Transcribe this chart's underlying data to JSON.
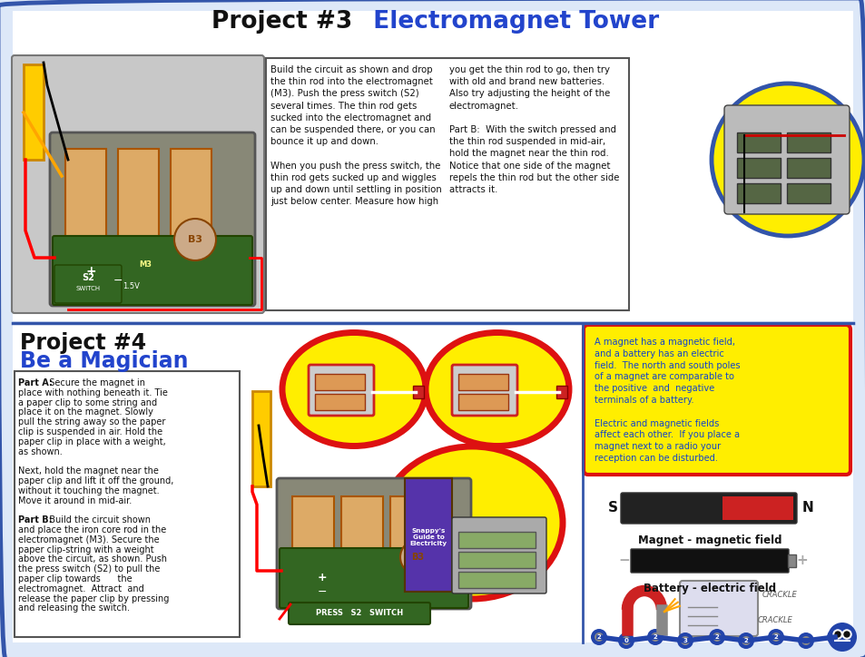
{
  "bg_color": "#ffffff",
  "outer_border_color": "#3355aa",
  "title_project3_black": "Project #3",
  "title_project3_blue": "  Electromagnet Tower",
  "title_project4_black": "Project #4",
  "title_project4_blue": "Be a Magician",
  "text_magnet_label": "Magnet - magnetic field",
  "text_battery_label": "Battery - electric field",
  "yellow_bg": "#ffee00",
  "red_border": "#dd1111",
  "blue_border": "#3355aa",
  "lines_left": [
    "Build the circuit as shown and drop",
    "the thin rod into the electromagnet",
    "(M3). Push the press switch (S2)",
    "several times. The thin rod gets",
    "sucked into the electromagnet and",
    "can be suspended there, or you can",
    "bounce it up and down.",
    "",
    "When you push the press switch, the",
    "thin rod gets sucked up and wiggles",
    "up and down until settling in position",
    "just below center. Measure how high"
  ],
  "lines_right": [
    "you get the thin rod to go, then try",
    "with old and brand new batteries.",
    "Also try adjusting the height of the",
    "electromagnet.",
    "",
    "Part B:  With the switch pressed and",
    "the thin rod suspended in mid-air,",
    "hold the magnet near the thin rod.",
    "Notice that one side of the magnet",
    "repels the thin rod but the other side",
    "attracts it."
  ],
  "lines_partAB": [
    [
      "Part A:  Secure the magnet in",
      true
    ],
    [
      "place with nothing beneath it. Tie",
      false
    ],
    [
      "a paper clip to some string and",
      false
    ],
    [
      "place it on the magnet. Slowly",
      false
    ],
    [
      "pull the string away so the paper",
      false
    ],
    [
      "clip is suspended in air. Hold the",
      false
    ],
    [
      "paper clip in place with a weight,",
      false
    ],
    [
      "as shown.",
      false
    ],
    [
      "",
      false
    ],
    [
      "Next, hold the magnet near the",
      false
    ],
    [
      "paper clip and lift it off the ground,",
      false
    ],
    [
      "without it touching the magnet.",
      false
    ],
    [
      "Move it around in mid-air.",
      false
    ],
    [
      "",
      false
    ],
    [
      "Part B:  Build the circuit shown",
      true
    ],
    [
      "and place the iron core rod in the",
      false
    ],
    [
      "electromagnet (M3). Secure the",
      false
    ],
    [
      "paper clip-string with a weight",
      false
    ],
    [
      "above the circuit, as shown. Push",
      false
    ],
    [
      "the press switch (S2) to pull the",
      false
    ],
    [
      "paper clip towards      the",
      false
    ],
    [
      "electromagnet.  Attract  and",
      false
    ],
    [
      "release the paper clip by pressing",
      false
    ],
    [
      "and releasing the switch.",
      false
    ]
  ],
  "info_lines": [
    "A magnet has a magnetic field,",
    "and a battery has an electric",
    "field.  The north and south poles",
    "of a magnet are comparable to",
    "the positive  and  negative",
    "terminals of a battery.",
    "",
    "Electric and magnetic fields",
    "affect each other.  If you place a",
    "magnet next to a radio your",
    "reception can be disturbed."
  ]
}
